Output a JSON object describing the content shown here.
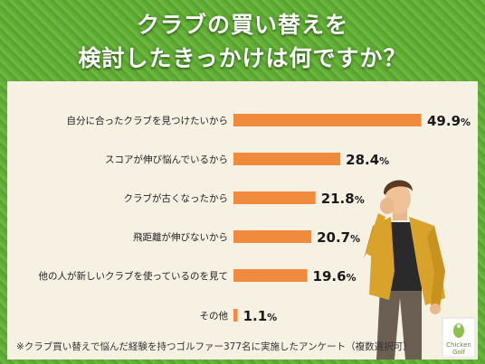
{
  "title": {
    "line1": "クラブの買い替えを",
    "line2": "検討したきっかけは何ですか？"
  },
  "chart_data": {
    "type": "bar",
    "orientation": "horizontal",
    "categories": [
      "自分に合ったクラブを見つけたいから",
      "スコアが伸び悩んでいるから",
      "クラブが古くなったから",
      "飛距離が伸びないから",
      "他の人が新しいクラブを使っているのを見て",
      "その他"
    ],
    "values": [
      49.9,
      28.4,
      21.8,
      20.7,
      19.6,
      1.1
    ],
    "value_labels": [
      "49.9",
      "28.4",
      "21.8",
      "20.7",
      "19.6",
      "1.1"
    ],
    "unit": "%",
    "xlim": [
      0,
      50
    ],
    "bar_color": "#f08a3c",
    "grid": false
  },
  "footnote": "※クラブ買い替えで悩んだ経験を持つゴルファー377名に実施したアンケート（複数選択可）",
  "logo": {
    "line1": "Chicken",
    "line2": "Golf"
  },
  "colors": {
    "grass": "#62ad37",
    "panel": "#f7f1e3",
    "bar": "#f08a3c",
    "jacket": "#d9a22a"
  }
}
